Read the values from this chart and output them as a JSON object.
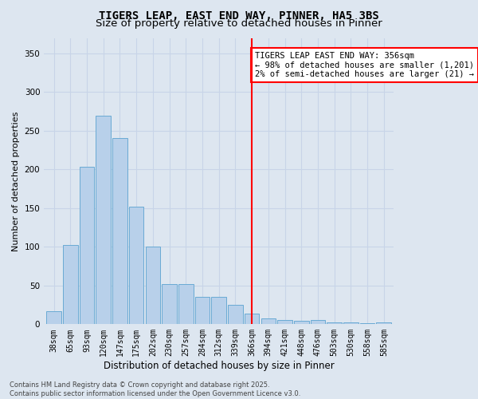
{
  "title": "TIGERS LEAP, EAST END WAY, PINNER, HA5 3BS",
  "subtitle": "Size of property relative to detached houses in Pinner",
  "xlabel": "Distribution of detached houses by size in Pinner",
  "ylabel": "Number of detached properties",
  "bar_labels": [
    "38sqm",
    "65sqm",
    "93sqm",
    "120sqm",
    "147sqm",
    "175sqm",
    "202sqm",
    "230sqm",
    "257sqm",
    "284sqm",
    "312sqm",
    "339sqm",
    "366sqm",
    "394sqm",
    "421sqm",
    "448sqm",
    "476sqm",
    "503sqm",
    "530sqm",
    "558sqm",
    "585sqm"
  ],
  "bar_heights": [
    17,
    102,
    203,
    269,
    241,
    152,
    100,
    52,
    52,
    35,
    35,
    25,
    14,
    8,
    6,
    4,
    5,
    2,
    2,
    1,
    2
  ],
  "bar_color": "#b8d0ea",
  "bar_edgecolor": "#6aaad4",
  "grid_color": "#c8d4e8",
  "background_color": "#dde6f0",
  "vline_color": "red",
  "annotation_text": "TIGERS LEAP EAST END WAY: 356sqm\n← 98% of detached houses are smaller (1,201)\n2% of semi-detached houses are larger (21) →",
  "annotation_box_color": "white",
  "annotation_box_edgecolor": "red",
  "ylim": [
    0,
    370
  ],
  "yticks": [
    0,
    50,
    100,
    150,
    200,
    250,
    300,
    350
  ],
  "footer": "Contains HM Land Registry data © Crown copyright and database right 2025.\nContains public sector information licensed under the Open Government Licence v3.0.",
  "title_fontsize": 10,
  "subtitle_fontsize": 9.5,
  "xlabel_fontsize": 8.5,
  "ylabel_fontsize": 8,
  "tick_fontsize": 7,
  "annotation_fontsize": 7.5,
  "footer_fontsize": 6
}
